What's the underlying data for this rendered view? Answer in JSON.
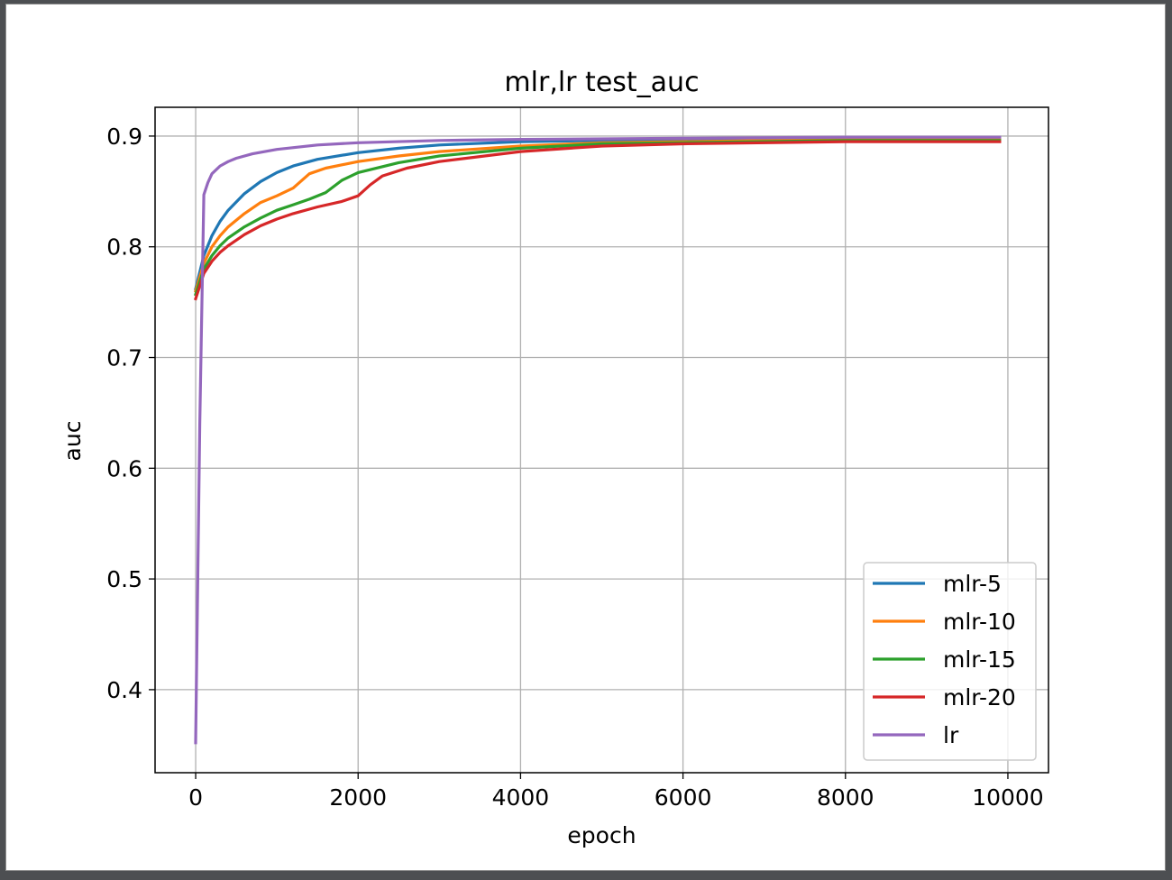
{
  "chart_data": {
    "type": "line",
    "title": "mlr,lr test_auc",
    "xlabel": "epoch",
    "ylabel": "auc",
    "xlim": [
      -500,
      10500
    ],
    "ylim": [
      0.325,
      0.926
    ],
    "xticks": [
      0,
      2000,
      4000,
      6000,
      8000,
      10000
    ],
    "xtick_labels": [
      "0",
      "2000",
      "4000",
      "6000",
      "8000",
      "10000"
    ],
    "yticks": [
      0.4,
      0.5,
      0.6,
      0.7,
      0.8,
      0.9
    ],
    "ytick_labels": [
      "0.4",
      "0.5",
      "0.6",
      "0.7",
      "0.8",
      "0.9"
    ],
    "grid": true,
    "legend_position": "lower-right",
    "series": [
      {
        "name": "mlr-5",
        "color": "#1f77b4",
        "x": [
          0,
          100,
          200,
          300,
          400,
          600,
          800,
          1000,
          1200,
          1500,
          2000,
          2500,
          3000,
          4000,
          5000,
          6000,
          8000,
          9900
        ],
        "y": [
          0.762,
          0.792,
          0.81,
          0.823,
          0.833,
          0.848,
          0.859,
          0.867,
          0.873,
          0.879,
          0.885,
          0.889,
          0.892,
          0.895,
          0.896,
          0.897,
          0.898,
          0.898
        ]
      },
      {
        "name": "mlr-10",
        "color": "#ff7f0e",
        "x": [
          0,
          100,
          200,
          300,
          400,
          600,
          800,
          1000,
          1200,
          1400,
          1600,
          2000,
          2500,
          3000,
          4000,
          5000,
          6000,
          8000,
          9900
        ],
        "y": [
          0.76,
          0.785,
          0.8,
          0.81,
          0.818,
          0.83,
          0.84,
          0.846,
          0.853,
          0.866,
          0.871,
          0.877,
          0.882,
          0.886,
          0.891,
          0.894,
          0.895,
          0.897,
          0.897
        ]
      },
      {
        "name": "mlr-15",
        "color": "#2ca02c",
        "x": [
          0,
          100,
          200,
          300,
          400,
          600,
          800,
          1000,
          1200,
          1400,
          1600,
          1800,
          2000,
          2500,
          3000,
          4000,
          5000,
          6000,
          8000,
          9900
        ],
        "y": [
          0.757,
          0.78,
          0.792,
          0.801,
          0.808,
          0.818,
          0.826,
          0.833,
          0.838,
          0.843,
          0.849,
          0.86,
          0.867,
          0.876,
          0.882,
          0.889,
          0.893,
          0.894,
          0.896,
          0.896
        ]
      },
      {
        "name": "mlr-20",
        "color": "#d62728",
        "x": [
          0,
          100,
          200,
          300,
          400,
          600,
          800,
          1000,
          1200,
          1500,
          1800,
          2000,
          2150,
          2300,
          2600,
          3000,
          4000,
          5000,
          6000,
          8000,
          9900
        ],
        "y": [
          0.753,
          0.776,
          0.787,
          0.795,
          0.801,
          0.811,
          0.819,
          0.825,
          0.83,
          0.836,
          0.841,
          0.846,
          0.856,
          0.864,
          0.871,
          0.877,
          0.886,
          0.891,
          0.893,
          0.895,
          0.895
        ]
      },
      {
        "name": "lr",
        "color": "#9467bd",
        "x": [
          0,
          50,
          100,
          150,
          200,
          300,
          400,
          500,
          700,
          1000,
          1500,
          2000,
          3000,
          4000,
          6000,
          8000,
          9900
        ],
        "y": [
          0.352,
          0.64,
          0.847,
          0.858,
          0.866,
          0.873,
          0.877,
          0.88,
          0.884,
          0.888,
          0.892,
          0.894,
          0.896,
          0.897,
          0.898,
          0.899,
          0.899
        ]
      }
    ]
  }
}
